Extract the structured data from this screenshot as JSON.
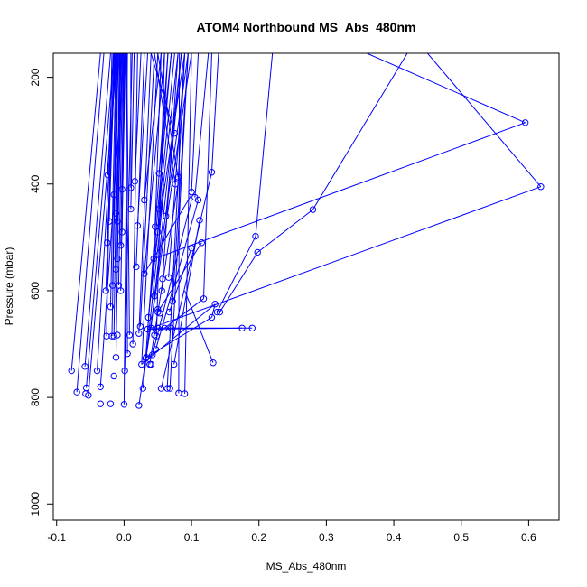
{
  "chart_data": {
    "type": "scatter",
    "title": "ATOM4 Northbound MS_Abs_480nm",
    "xlabel": "MS_Abs_480nm",
    "ylabel": "Pressure (mbar)",
    "xlim": [
      -0.105,
      0.645
    ],
    "ylim": [
      1030,
      155
    ],
    "y_reversed": true,
    "grid": false,
    "legend": "none",
    "color": "#0000ff",
    "x_ticks": [
      "-0.1",
      "0.0",
      "0.1",
      "0.2",
      "0.3",
      "0.4",
      "0.5",
      "0.6"
    ],
    "x_tick_values": [
      -0.1,
      0.0,
      0.1,
      0.2,
      0.3,
      0.4,
      0.5,
      0.6
    ],
    "y_ticks": [
      "200",
      "400",
      "600",
      "800",
      "1000"
    ],
    "y_tick_values": [
      200,
      400,
      600,
      800,
      1000
    ],
    "points": [
      [
        -0.078,
        750
      ],
      [
        -0.07,
        790
      ],
      [
        -0.058,
        742
      ],
      [
        -0.056,
        782
      ],
      [
        -0.057,
        793
      ],
      [
        -0.053,
        796
      ],
      [
        -0.04,
        750
      ],
      [
        -0.035,
        780
      ],
      [
        -0.035,
        812
      ],
      [
        -0.026,
        685
      ],
      [
        -0.027,
        600
      ],
      [
        -0.025,
        510
      ],
      [
        -0.024,
        383
      ],
      [
        -0.022,
        470
      ],
      [
        -0.02,
        812
      ],
      [
        -0.018,
        685
      ],
      [
        -0.02,
        630
      ],
      [
        -0.015,
        685
      ],
      [
        -0.017,
        590
      ],
      [
        -0.012,
        560
      ],
      [
        -0.015,
        760
      ],
      [
        -0.012,
        725
      ],
      [
        -0.015,
        420
      ],
      [
        -0.012,
        455
      ],
      [
        -0.01,
        470
      ],
      [
        -0.01,
        540
      ],
      [
        -0.005,
        515
      ],
      [
        -0.008,
        590
      ],
      [
        -0.005,
        600
      ],
      [
        -0.003,
        410
      ],
      [
        -0.003,
        490
      ],
      [
        -0.01,
        683
      ],
      [
        0.0,
        813
      ],
      [
        0.001,
        750
      ],
      [
        0.005,
        718
      ],
      [
        0.008,
        683
      ],
      [
        0.01,
        407
      ],
      [
        0.01,
        447
      ],
      [
        0.013,
        700
      ],
      [
        0.016,
        395
      ],
      [
        0.018,
        555
      ],
      [
        0.02,
        478
      ],
      [
        0.022,
        680
      ],
      [
        0.024,
        667
      ],
      [
        0.022,
        815
      ],
      [
        0.026,
        738
      ],
      [
        0.028,
        783
      ],
      [
        0.03,
        430
      ],
      [
        0.03,
        568
      ],
      [
        0.032,
        727
      ],
      [
        0.033,
        725
      ],
      [
        0.035,
        672
      ],
      [
        0.036,
        650
      ],
      [
        0.038,
        738
      ],
      [
        0.04,
        670
      ],
      [
        0.04,
        738
      ],
      [
        0.042,
        720
      ],
      [
        0.044,
        540
      ],
      [
        0.045,
        610
      ],
      [
        0.045,
        683
      ],
      [
        0.046,
        480
      ],
      [
        0.047,
        710
      ],
      [
        0.048,
        685
      ],
      [
        0.05,
        670
      ],
      [
        0.05,
        640
      ],
      [
        0.05,
        635
      ],
      [
        0.05,
        490
      ],
      [
        0.052,
        380
      ],
      [
        0.052,
        447
      ],
      [
        0.053,
        642
      ],
      [
        0.055,
        783
      ],
      [
        0.056,
        600
      ],
      [
        0.057,
        578
      ],
      [
        0.06,
        670
      ],
      [
        0.062,
        460
      ],
      [
        0.064,
        783
      ],
      [
        0.066,
        575
      ],
      [
        0.067,
        640
      ],
      [
        0.068,
        783
      ],
      [
        0.07,
        670
      ],
      [
        0.072,
        620
      ],
      [
        0.074,
        738
      ],
      [
        0.075,
        305
      ],
      [
        0.076,
        400
      ],
      [
        0.08,
        387
      ],
      [
        0.081,
        792
      ],
      [
        0.09,
        793
      ],
      [
        0.1,
        415
      ],
      [
        0.1,
        520
      ],
      [
        0.105,
        425
      ],
      [
        0.11,
        430
      ],
      [
        0.112,
        468
      ],
      [
        0.115,
        510
      ],
      [
        0.118,
        615
      ],
      [
        0.13,
        378
      ],
      [
        0.13,
        650
      ],
      [
        0.132,
        735
      ],
      [
        0.135,
        625
      ],
      [
        0.138,
        640
      ],
      [
        0.142,
        640
      ],
      [
        0.175,
        670
      ],
      [
        0.19,
        670
      ],
      [
        0.195,
        498
      ],
      [
        0.198,
        528
      ],
      [
        0.28,
        448
      ],
      [
        0.595,
        285
      ],
      [
        0.618,
        405
      ]
    ],
    "segments": [
      [
        -0.078,
        750,
        -0.035,
        155
      ],
      [
        -0.07,
        790,
        -0.03,
        155
      ],
      [
        -0.058,
        742,
        -0.02,
        155
      ],
      [
        -0.056,
        782,
        -0.015,
        155
      ],
      [
        -0.053,
        796,
        -0.01,
        155
      ],
      [
        -0.04,
        750,
        -0.012,
        155
      ],
      [
        -0.035,
        780,
        0.0,
        155
      ],
      [
        -0.026,
        685,
        -0.018,
        155
      ],
      [
        -0.027,
        600,
        -0.015,
        155
      ],
      [
        -0.025,
        510,
        -0.013,
        155
      ],
      [
        -0.024,
        383,
        -0.016,
        155
      ],
      [
        -0.022,
        470,
        -0.014,
        155
      ],
      [
        -0.02,
        630,
        -0.012,
        155
      ],
      [
        -0.018,
        685,
        -0.01,
        155
      ],
      [
        -0.017,
        590,
        -0.011,
        155
      ],
      [
        -0.015,
        685,
        -0.009,
        155
      ],
      [
        -0.015,
        420,
        -0.008,
        155
      ],
      [
        -0.012,
        560,
        -0.006,
        155
      ],
      [
        -0.012,
        725,
        -0.005,
        155
      ],
      [
        -0.012,
        455,
        -0.004,
        155
      ],
      [
        -0.01,
        540,
        -0.003,
        155
      ],
      [
        -0.01,
        470,
        -0.007,
        155
      ],
      [
        -0.008,
        590,
        -0.002,
        155
      ],
      [
        -0.005,
        515,
        0.0,
        155
      ],
      [
        -0.005,
        600,
        0.002,
        155
      ],
      [
        -0.003,
        410,
        -0.001,
        155
      ],
      [
        -0.003,
        490,
        0.001,
        155
      ],
      [
        0.005,
        718,
        0.003,
        155
      ],
      [
        0.008,
        683,
        0.004,
        155
      ],
      [
        0.01,
        407,
        0.01,
        155
      ],
      [
        0.01,
        447,
        0.015,
        155
      ],
      [
        0.013,
        700,
        0.02,
        155
      ],
      [
        0.016,
        395,
        0.025,
        155
      ],
      [
        0.018,
        555,
        0.03,
        155
      ],
      [
        0.02,
        478,
        0.035,
        155
      ],
      [
        0.022,
        680,
        0.04,
        155
      ],
      [
        0.024,
        667,
        0.045,
        155
      ],
      [
        0.026,
        738,
        0.05,
        155
      ],
      [
        0.03,
        430,
        0.055,
        155
      ],
      [
        0.03,
        568,
        0.06,
        155
      ],
      [
        0.032,
        727,
        0.065,
        155
      ],
      [
        0.035,
        672,
        0.07,
        155
      ],
      [
        0.036,
        650,
        0.08,
        155
      ],
      [
        0.04,
        670,
        0.085,
        155
      ],
      [
        0.044,
        540,
        0.09,
        155
      ],
      [
        0.045,
        610,
        0.095,
        155
      ],
      [
        0.046,
        480,
        0.055,
        155
      ],
      [
        0.048,
        685,
        0.06,
        155
      ],
      [
        0.05,
        490,
        0.065,
        155
      ],
      [
        0.052,
        380,
        0.07,
        155
      ],
      [
        0.052,
        447,
        0.075,
        155
      ],
      [
        0.056,
        600,
        0.08,
        155
      ],
      [
        0.062,
        460,
        0.085,
        155
      ],
      [
        0.066,
        575,
        0.09,
        155
      ],
      [
        0.072,
        620,
        0.095,
        155
      ],
      [
        0.075,
        305,
        0.04,
        155
      ],
      [
        0.076,
        400,
        0.045,
        155
      ],
      [
        0.08,
        387,
        0.05,
        155
      ],
      [
        0.022,
        815,
        0.1,
        155
      ],
      [
        0.028,
        783,
        0.06,
        400
      ],
      [
        0.03,
        568,
        0.1,
        420
      ],
      [
        0.038,
        738,
        0.08,
        400
      ],
      [
        0.042,
        720,
        0.1,
        430
      ],
      [
        0.047,
        710,
        0.11,
        430
      ],
      [
        0.05,
        640,
        0.115,
        510
      ],
      [
        0.055,
        783,
        0.13,
        378
      ],
      [
        0.06,
        670,
        0.118,
        615
      ],
      [
        0.067,
        640,
        0.1,
        520
      ],
      [
        0.074,
        738,
        0.112,
        468
      ],
      [
        0.1,
        415,
        0.11,
        155
      ],
      [
        0.105,
        425,
        0.125,
        155
      ],
      [
        0.118,
        615,
        0.13,
        155
      ],
      [
        0.13,
        378,
        0.14,
        155
      ],
      [
        0.13,
        650,
        0.135,
        625
      ],
      [
        0.132,
        735,
        0.09,
        600
      ],
      [
        0.138,
        640,
        0.195,
        498
      ],
      [
        0.142,
        640,
        0.198,
        528
      ],
      [
        0.175,
        670,
        0.035,
        672
      ],
      [
        0.19,
        670,
        0.04,
        670
      ],
      [
        0.195,
        498,
        0.22,
        155
      ],
      [
        0.198,
        528,
        0.28,
        448
      ],
      [
        0.28,
        448,
        0.42,
        155
      ],
      [
        0.595,
        285,
        0.36,
        155
      ],
      [
        0.595,
        285,
        0.045,
        540
      ],
      [
        0.618,
        405,
        0.45,
        155
      ],
      [
        0.618,
        405,
        0.04,
        670
      ],
      [
        0.0,
        813,
        0.005,
        155
      ],
      [
        0.001,
        750,
        0.012,
        155
      ],
      [
        0.09,
        793,
        0.1,
        155
      ],
      [
        0.081,
        792,
        0.082,
        155
      ],
      [
        0.064,
        783,
        0.09,
        155
      ],
      [
        0.068,
        783,
        0.095,
        155
      ],
      [
        0.026,
        738,
        0.135,
        625
      ],
      [
        0.033,
        725,
        0.13,
        650
      ]
    ]
  }
}
